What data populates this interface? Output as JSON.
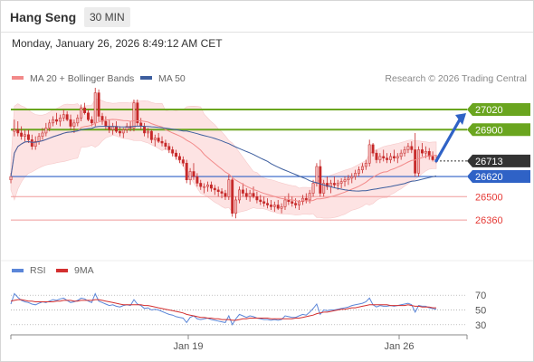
{
  "header": {
    "symbol": "Hang Seng",
    "timeframe": "30 MIN",
    "datetime": "Monday, January 26, 2026 8:49:12 AM CET"
  },
  "credit": "Research © 2026 Trading Central",
  "colors": {
    "resistance_line": "#6aa51f",
    "resistance_tag": "#6aa51f",
    "support_line": "#ef9a9a",
    "support_text": "#e53935",
    "pivot_line": "#2f62c6",
    "pivot_tag": "#2f62c6",
    "last_tag": "#333333",
    "arrow": "#2f62c6",
    "up_candle": "#f2b7b7",
    "down_candle": "#c62828",
    "bollinger_fill": "#fde3e3",
    "ma20": "#f28a8a",
    "ma50": "#3d5e9e",
    "rsi": "#5b86d8",
    "rsi_ma": "#d32f2f"
  },
  "chart_data": [
    {
      "type": "candlestick",
      "legend": [
        {
          "label": "MA 20 + Bollinger Bands",
          "color": "#f28a8a"
        },
        {
          "label": "MA 50",
          "color": "#3d5e9e"
        }
      ],
      "price_ylim": [
        26150,
        27150
      ],
      "x_ticks": [
        "Jan 19",
        "Jan 26"
      ],
      "levels": [
        {
          "value": 27020,
          "label": "27020",
          "kind": "resistance"
        },
        {
          "value": 26900,
          "label": "26900",
          "kind": "resistance"
        },
        {
          "value": 26713,
          "label": "26713",
          "kind": "last"
        },
        {
          "value": 26620,
          "label": "26620",
          "kind": "pivot"
        },
        {
          "value": 26500,
          "label": "26500",
          "kind": "support"
        },
        {
          "value": 26360,
          "label": "26360",
          "kind": "support"
        }
      ],
      "candles": [
        [
          26600,
          26640,
          26580,
          26620
        ],
        [
          26890,
          26960,
          26860,
          26900
        ],
        [
          26900,
          26950,
          26860,
          26880
        ],
        [
          26880,
          26920,
          26840,
          26860
        ],
        [
          26860,
          26900,
          26830,
          26870
        ],
        [
          26870,
          26900,
          26820,
          26840
        ],
        [
          26840,
          26870,
          26780,
          26800
        ],
        [
          26800,
          26860,
          26780,
          26830
        ],
        [
          26830,
          26880,
          26810,
          26860
        ],
        [
          26860,
          26910,
          26840,
          26880
        ],
        [
          26880,
          26940,
          26860,
          26910
        ],
        [
          26910,
          26960,
          26890,
          26940
        ],
        [
          26940,
          26980,
          26920,
          26960
        ],
        [
          26960,
          27000,
          26930,
          26950
        ],
        [
          26950,
          26990,
          26920,
          26970
        ],
        [
          26970,
          27020,
          26950,
          26990
        ],
        [
          26990,
          27010,
          26950,
          26960
        ],
        [
          26960,
          26990,
          26900,
          26920
        ],
        [
          26920,
          26960,
          26880,
          26940
        ],
        [
          26940,
          26990,
          26920,
          26970
        ],
        [
          26970,
          27050,
          26950,
          27030
        ],
        [
          27030,
          27060,
          26990,
          27000
        ],
        [
          27000,
          27020,
          26950,
          26960
        ],
        [
          26960,
          26980,
          26920,
          26940
        ],
        [
          26940,
          27150,
          26920,
          27120
        ],
        [
          27120,
          27140,
          26950,
          26980
        ],
        [
          26980,
          27000,
          26930,
          26950
        ],
        [
          26950,
          26980,
          26900,
          26920
        ],
        [
          26920,
          26960,
          26880,
          26900
        ],
        [
          26900,
          26940,
          26870,
          26920
        ],
        [
          26920,
          26950,
          26880,
          26890
        ],
        [
          26890,
          26920,
          26860,
          26880
        ],
        [
          26880,
          26910,
          26850,
          26900
        ],
        [
          26900,
          26940,
          26880,
          26920
        ],
        [
          26920,
          26950,
          26890,
          26910
        ],
        [
          26910,
          27080,
          26890,
          27060
        ],
        [
          27060,
          27080,
          26920,
          26940
        ],
        [
          26940,
          26970,
          26900,
          26920
        ],
        [
          26920,
          26940,
          26860,
          26880
        ],
        [
          26880,
          26910,
          26850,
          26890
        ],
        [
          26890,
          26900,
          26820,
          26840
        ],
        [
          26840,
          26870,
          26800,
          26850
        ],
        [
          26850,
          26880,
          26820,
          26830
        ],
        [
          26830,
          26860,
          26800,
          26820
        ],
        [
          26820,
          26840,
          26780,
          26800
        ],
        [
          26800,
          26820,
          26760,
          26780
        ],
        [
          26780,
          26800,
          26740,
          26760
        ],
        [
          26760,
          26780,
          26720,
          26740
        ],
        [
          26740,
          26760,
          26700,
          26720
        ],
        [
          26720,
          26740,
          26680,
          26700
        ],
        [
          26700,
          26720,
          26580,
          26600
        ],
        [
          26600,
          26670,
          26570,
          26650
        ],
        [
          26650,
          26700,
          26600,
          26620
        ],
        [
          26620,
          26640,
          26560,
          26580
        ],
        [
          26580,
          26600,
          26540,
          26560
        ],
        [
          26560,
          26580,
          26520,
          26560
        ],
        [
          26560,
          26590,
          26530,
          26570
        ],
        [
          26570,
          26590,
          26530,
          26550
        ],
        [
          26550,
          26570,
          26510,
          26540
        ],
        [
          26540,
          26560,
          26500,
          26530
        ],
        [
          26530,
          26550,
          26490,
          26520
        ],
        [
          26520,
          26540,
          26480,
          26500
        ],
        [
          26500,
          26630,
          26480,
          26600
        ],
        [
          26600,
          26610,
          26380,
          26400
        ],
        [
          26400,
          26500,
          26370,
          26480
        ],
        [
          26480,
          26560,
          26460,
          26540
        ],
        [
          26540,
          26580,
          26500,
          26520
        ],
        [
          26520,
          26550,
          26480,
          26500
        ],
        [
          26500,
          26540,
          26470,
          26520
        ],
        [
          26520,
          26560,
          26490,
          26500
        ],
        [
          26500,
          26530,
          26460,
          26480
        ],
        [
          26480,
          26510,
          26450,
          26470
        ],
        [
          26470,
          26500,
          26440,
          26460
        ],
        [
          26460,
          26490,
          26430,
          26450
        ],
        [
          26450,
          26480,
          26420,
          26440
        ],
        [
          26440,
          26470,
          26410,
          26450
        ],
        [
          26450,
          26480,
          26420,
          26430
        ],
        [
          26430,
          26460,
          26400,
          26440
        ],
        [
          26440,
          26500,
          26420,
          26480
        ],
        [
          26480,
          26520,
          26450,
          26470
        ],
        [
          26470,
          26500,
          26440,
          26460
        ],
        [
          26460,
          26490,
          26430,
          26450
        ],
        [
          26450,
          26480,
          26420,
          26470
        ],
        [
          26470,
          26510,
          26450,
          26490
        ],
        [
          26490,
          26520,
          26460,
          26480
        ],
        [
          26480,
          26540,
          26460,
          26520
        ],
        [
          26520,
          26600,
          26500,
          26580
        ],
        [
          26580,
          26700,
          26560,
          26680
        ],
        [
          26680,
          26720,
          26500,
          26520
        ],
        [
          26520,
          26600,
          26500,
          26580
        ],
        [
          26580,
          26620,
          26540,
          26560
        ],
        [
          26560,
          26600,
          26520,
          26580
        ],
        [
          26580,
          26620,
          26550,
          26570
        ],
        [
          26570,
          26600,
          26540,
          26580
        ],
        [
          26580,
          26610,
          26550,
          26590
        ],
        [
          26590,
          26620,
          26560,
          26600
        ],
        [
          26600,
          26630,
          26570,
          26610
        ],
        [
          26610,
          26640,
          26580,
          26620
        ],
        [
          26620,
          26660,
          26600,
          26640
        ],
        [
          26640,
          26680,
          26620,
          26660
        ],
        [
          26660,
          26700,
          26640,
          26680
        ],
        [
          26680,
          26720,
          26660,
          26700
        ],
        [
          26700,
          26840,
          26680,
          26810
        ],
        [
          26810,
          26820,
          26740,
          26760
        ],
        [
          26760,
          26780,
          26700,
          26720
        ],
        [
          26720,
          26760,
          26700,
          26740
        ],
        [
          26740,
          26780,
          26710,
          26730
        ],
        [
          26730,
          26760,
          26700,
          26720
        ],
        [
          26720,
          26760,
          26700,
          26740
        ],
        [
          26740,
          26780,
          26710,
          26730
        ],
        [
          26730,
          26760,
          26700,
          26740
        ],
        [
          26740,
          26780,
          26720,
          26760
        ],
        [
          26760,
          26800,
          26740,
          26780
        ],
        [
          26780,
          26820,
          26760,
          26800
        ],
        [
          26800,
          26830,
          26760,
          26780
        ],
        [
          26780,
          26880,
          26620,
          26640
        ],
        [
          26640,
          26800,
          26620,
          26780
        ],
        [
          26780,
          26820,
          26740,
          26760
        ],
        [
          26760,
          26800,
          26730,
          26770
        ],
        [
          26770,
          26790,
          26720,
          26740
        ],
        [
          26740,
          26770,
          26710,
          26720
        ],
        [
          26720,
          26750,
          26700,
          26713
        ]
      ],
      "arrow_target": 27020
    },
    {
      "type": "line",
      "legend": [
        {
          "label": "RSI",
          "color": "#5b86d8"
        },
        {
          "label": "9MA",
          "color": "#d32f2f"
        }
      ],
      "ylim": [
        20,
        80
      ],
      "y_ticks": [
        70,
        50,
        30
      ],
      "series": [
        {
          "name": "RSI",
          "values": [
            58,
            72,
            67,
            63,
            61,
            60,
            58,
            57,
            59,
            61,
            60,
            62,
            64,
            63,
            65,
            66,
            63,
            60,
            61,
            63,
            66,
            65,
            62,
            60,
            72,
            62,
            60,
            58,
            56,
            57,
            55,
            54,
            56,
            57,
            56,
            64,
            58,
            56,
            52,
            53,
            50,
            51,
            50,
            48,
            46,
            44,
            43,
            41,
            40,
            39,
            33,
            40,
            42,
            38,
            37,
            38,
            39,
            37,
            36,
            35,
            34,
            33,
            42,
            30,
            38,
            44,
            42,
            40,
            42,
            41,
            39,
            38,
            37,
            37,
            36,
            37,
            36,
            37,
            42,
            41,
            40,
            40,
            42,
            44,
            43,
            47,
            52,
            58,
            44,
            50,
            49,
            50,
            50,
            51,
            52,
            53,
            54,
            56,
            57,
            58,
            59,
            61,
            66,
            57,
            54,
            56,
            55,
            55,
            56,
            55,
            56,
            57,
            58,
            59,
            57,
            47,
            56,
            55,
            55,
            53,
            52,
            51
          ]
        },
        {
          "name": "9MA",
          "values": [
            62,
            63,
            64,
            64,
            63,
            62,
            62,
            61,
            61,
            61,
            61,
            61,
            61,
            62,
            62,
            63,
            63,
            63,
            62,
            62,
            63,
            63,
            63,
            63,
            64,
            64,
            63,
            62,
            61,
            60,
            59,
            58,
            57,
            57,
            57,
            57,
            57,
            57,
            56,
            56,
            55,
            54,
            53,
            52,
            51,
            50,
            49,
            48,
            47,
            46,
            44,
            43,
            42,
            41,
            40,
            40,
            39,
            39,
            38,
            38,
            37,
            37,
            37,
            36,
            36,
            37,
            38,
            38,
            39,
            39,
            39,
            39,
            39,
            39,
            38,
            38,
            38,
            38,
            38,
            38,
            38,
            39,
            39,
            40,
            41,
            42,
            43,
            45,
            46,
            47,
            47,
            48,
            49,
            50,
            51,
            51,
            52,
            53,
            53,
            54,
            55,
            56,
            57,
            57,
            57,
            57,
            57,
            57,
            56,
            56,
            56,
            56,
            56,
            57,
            56,
            55,
            55,
            54,
            54,
            54,
            53,
            53
          ]
        }
      ]
    }
  ]
}
